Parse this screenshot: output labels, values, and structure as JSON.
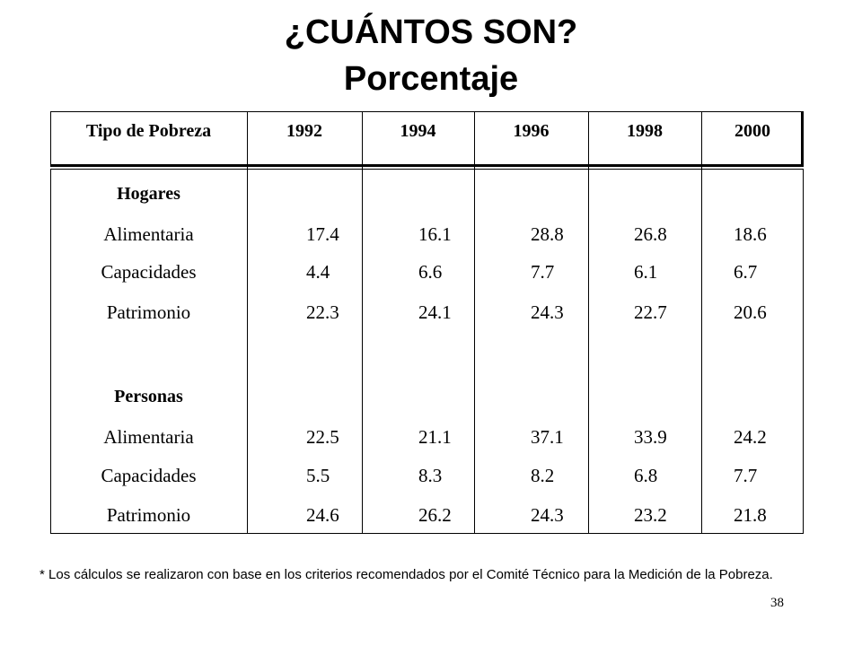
{
  "title": {
    "line1": "¿CUÁNTOS SON?",
    "line2": "Porcentaje"
  },
  "table": {
    "headers": [
      "Tipo de Pobreza",
      "1992",
      "1994",
      "1996",
      "1998",
      "2000"
    ],
    "sections": [
      {
        "name": "Hogares",
        "rows": [
          {
            "label": "Alimentaria",
            "values": [
              "17.4",
              "16.1",
              "28.8",
              "26.8",
              "18.6"
            ]
          },
          {
            "label": "Capacidades",
            "values": [
              "4.4",
              "6.6",
              "7.7",
              "6.1",
              "6.7"
            ]
          },
          {
            "label": "Patrimonio",
            "values": [
              "22.3",
              "24.1",
              "24.3",
              "22.7",
              "20.6"
            ]
          }
        ]
      },
      {
        "name": "Personas",
        "rows": [
          {
            "label": "Alimentaria",
            "values": [
              "22.5",
              "21.1",
              "37.1",
              "33.9",
              "24.2"
            ]
          },
          {
            "label": "Capacidades",
            "values": [
              "5.5",
              "8.3",
              "8.2",
              "6.8",
              "7.7"
            ]
          },
          {
            "label": "Patrimonio",
            "values": [
              "24.6",
              "26.2",
              "24.3",
              "23.2",
              "21.8"
            ]
          }
        ]
      }
    ]
  },
  "footnote": "* Los cálculos se realizaron con base en los criterios recomendados por el Comité Técnico para la Medición de la Pobreza.",
  "page_number": "38"
}
